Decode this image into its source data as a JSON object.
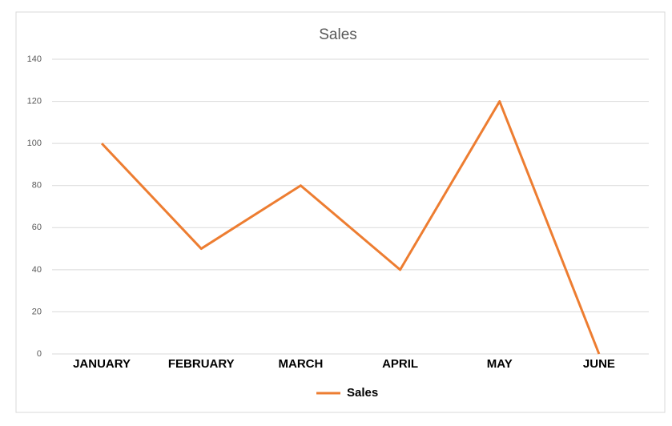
{
  "chart_data": {
    "type": "line",
    "title": "Sales",
    "categories": [
      "JANUARY",
      "FEBRUARY",
      "MARCH",
      "APRIL",
      "MAY",
      "JUNE"
    ],
    "series": [
      {
        "name": "Sales",
        "color": "#ed7d31",
        "values": [
          100,
          50,
          80,
          40,
          120,
          0
        ]
      }
    ],
    "ylim": [
      0,
      140
    ],
    "yticks": [
      0,
      20,
      40,
      60,
      80,
      100,
      120,
      140
    ],
    "grid": true,
    "legend": "bottom"
  }
}
